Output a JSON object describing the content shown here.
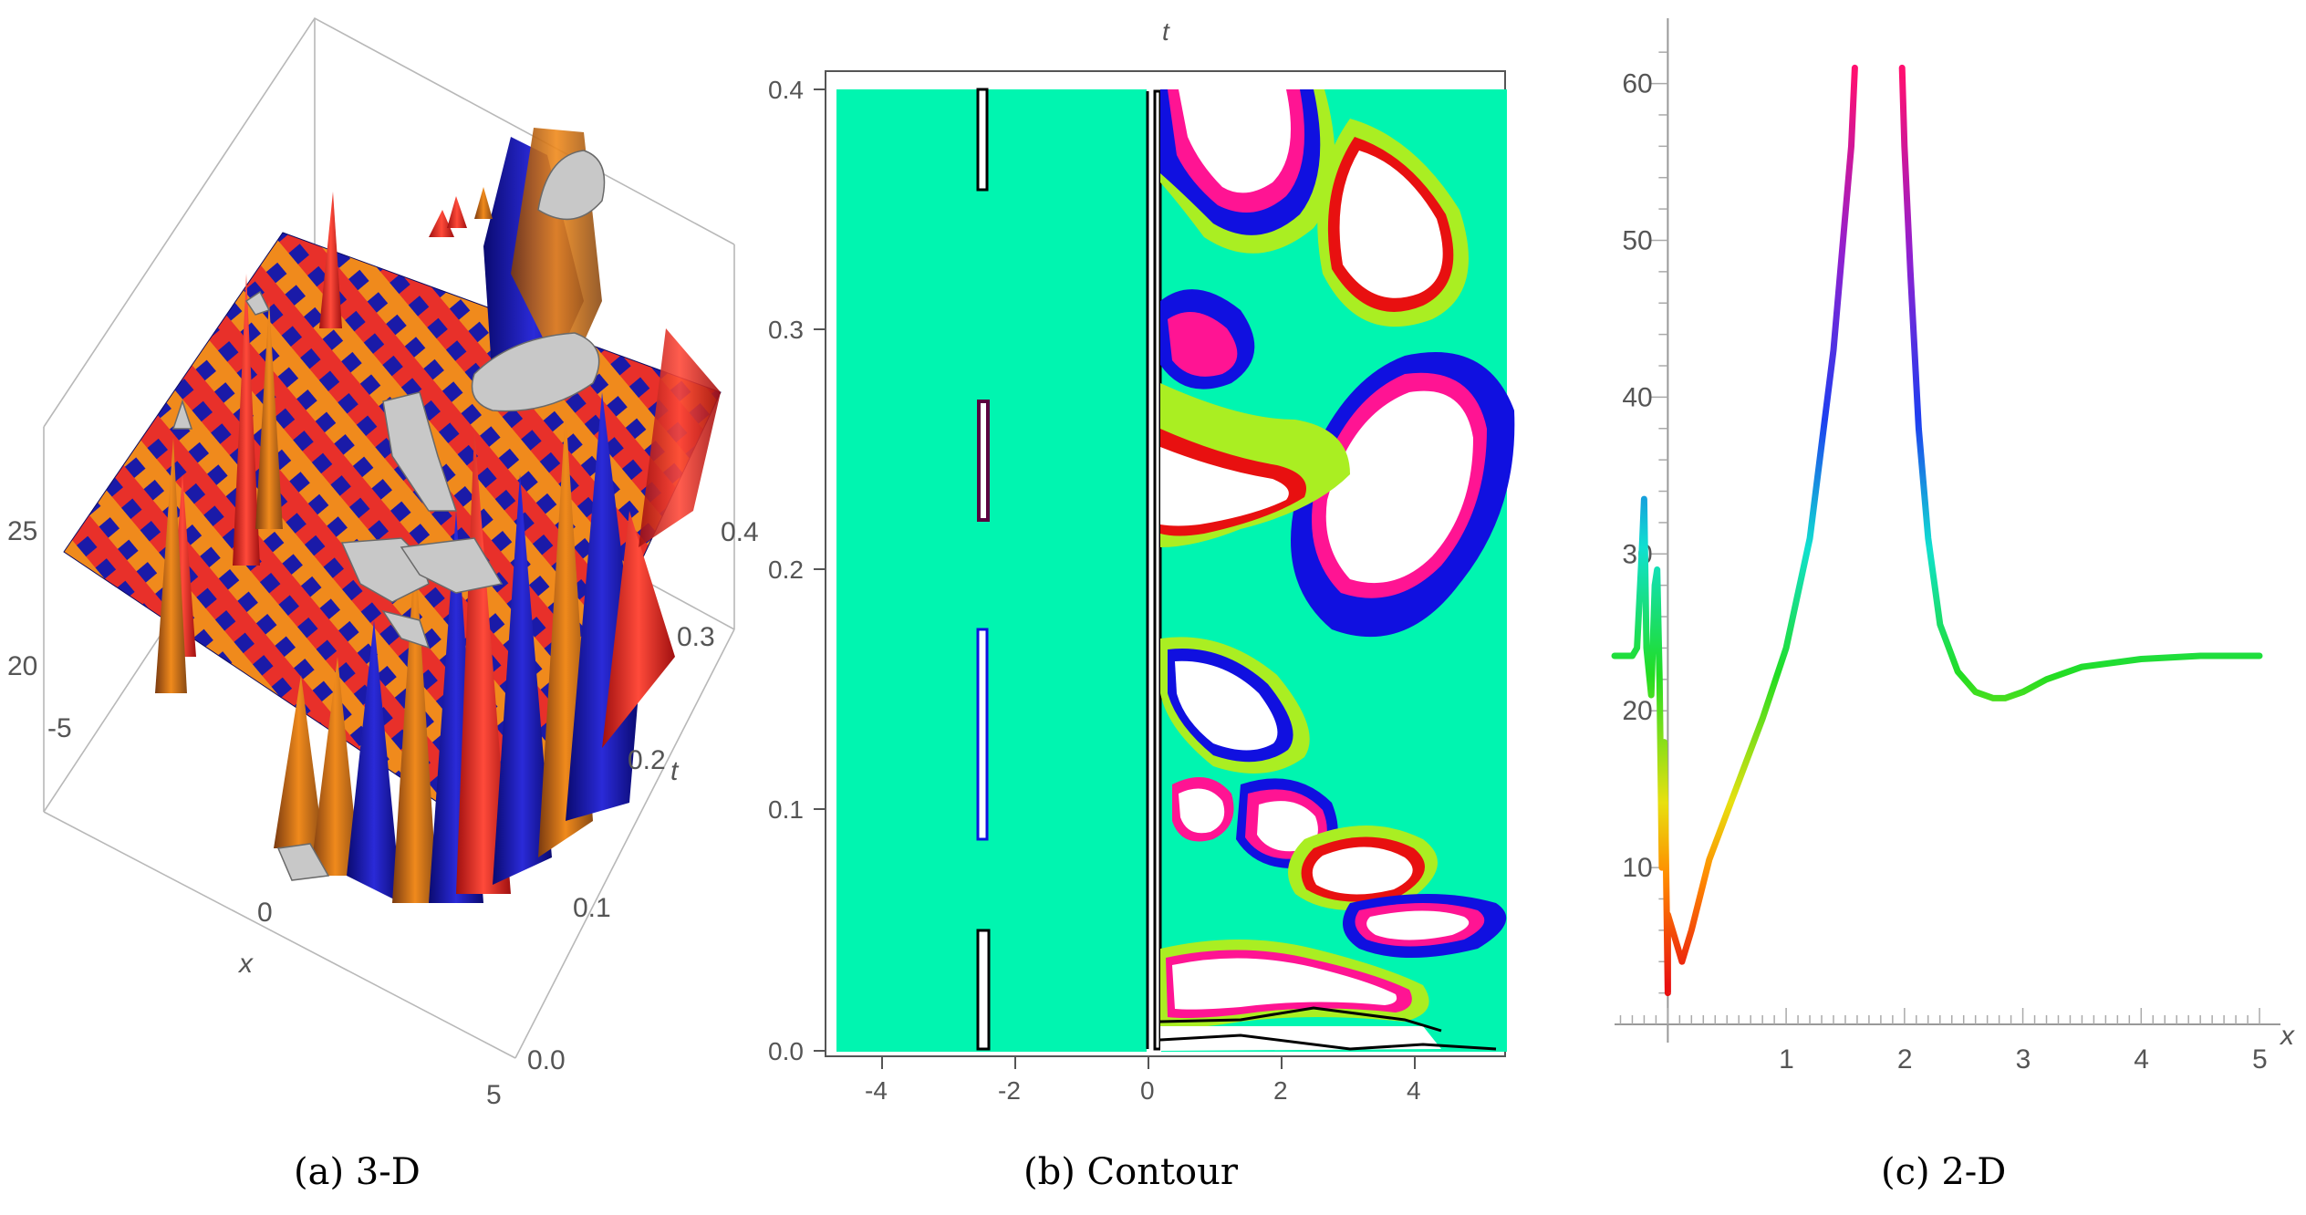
{
  "captions": {
    "a": "(a) 3-D",
    "b": "(b) Contour",
    "c": "(c) 2-D"
  },
  "chart_data": [
    {
      "type": "surface-3d",
      "caption": "(a) 3-D",
      "xlabel": "x",
      "ylabel": "t",
      "zlabel": "",
      "x_ticks": [
        "-5",
        "0",
        "5"
      ],
      "t_ticks": [
        "0.0",
        "0.1",
        "0.2",
        "0.3",
        "0.4"
      ],
      "z_ticks": [
        "20",
        "25"
      ],
      "xlim": [
        -5,
        5
      ],
      "tlim": [
        0,
        0.4
      ],
      "colors": [
        "#1a1aa8",
        "#e8302a",
        "#f08a1c",
        "#c8c8c8"
      ]
    },
    {
      "type": "contour",
      "caption": "(b) Contour",
      "xlabel": "",
      "ylabel": "t",
      "x_ticks": [
        "-4",
        "-2",
        "0",
        "2",
        "4"
      ],
      "y_ticks": [
        "0.0",
        "0.1",
        "0.2",
        "0.3",
        "0.4"
      ],
      "xlim": [
        -5,
        5
      ],
      "ylim": [
        0,
        0.4
      ],
      "grid": false,
      "colors": {
        "background": "#00f5b0",
        "level_1": "#aaee22",
        "level_2": "#1010e0",
        "level_3": "#ff1493",
        "level_4": "#e81010",
        "peak": "#ffffff"
      }
    },
    {
      "type": "line",
      "caption": "(c) 2-D",
      "xlabel": "x",
      "ylabel": "",
      "x_ticks": [
        "1",
        "2",
        "3",
        "4",
        "5"
      ],
      "y_ticks": [
        "10",
        "20",
        "30",
        "40",
        "50",
        "60"
      ],
      "xlim": [
        -0.45,
        5.1
      ],
      "ylim": [
        0,
        63
      ],
      "colormap": "rainbow",
      "series": [
        {
          "x": [
            -0.45,
            -0.3,
            -0.26,
            -0.22,
            -0.2,
            -0.18,
            -0.14,
            -0.11,
            -0.09,
            -0.07,
            -0.05,
            -0.03,
            0.0,
            0.0,
            0.06,
            0.12,
            0.2,
            0.35,
            0.55,
            0.8,
            1.0,
            1.2,
            1.4,
            1.55,
            1.58
          ],
          "y": [
            23.5,
            23.5,
            24.0,
            30.0,
            33.5,
            24.0,
            21.0,
            28.0,
            29.0,
            22.0,
            10.0,
            18.0,
            2.0,
            7.0,
            5.5,
            4.0,
            6.0,
            10.5,
            14.5,
            19.5,
            24.0,
            31.0,
            43.0,
            56.0,
            61.0
          ]
        },
        {
          "x": [
            1.98,
            2.0,
            2.05,
            2.12,
            2.2,
            2.3,
            2.45,
            2.6,
            2.75,
            2.85,
            3.0,
            3.2,
            3.5,
            4.0,
            4.5,
            5.0
          ],
          "y": [
            61.0,
            56.0,
            48.0,
            38.0,
            31.0,
            25.5,
            22.5,
            21.2,
            20.8,
            20.8,
            21.2,
            22.0,
            22.8,
            23.3,
            23.5,
            23.5
          ]
        }
      ]
    }
  ]
}
